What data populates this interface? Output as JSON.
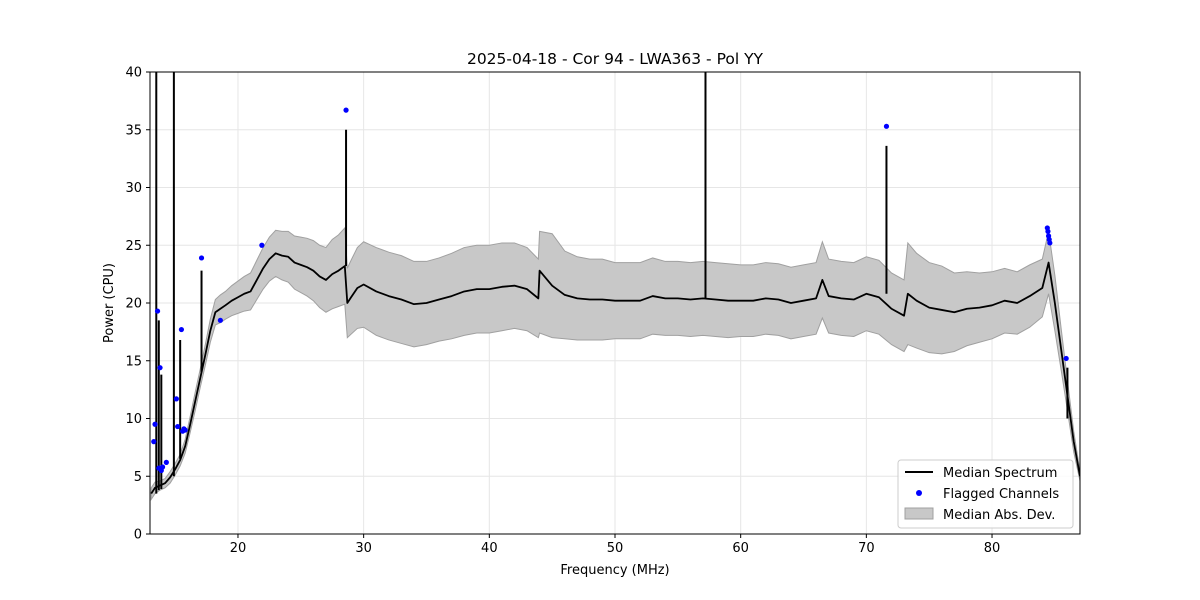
{
  "chart_data": {
    "type": "line",
    "title": "2025-04-18 - Cor 94 - LWA363 - Pol YY",
    "xlabel": "Frequency (MHz)",
    "ylabel": "Power (CPU)",
    "xlim": [
      13.0,
      87.0
    ],
    "ylim": [
      0,
      40
    ],
    "xticks": [
      20,
      30,
      40,
      50,
      60,
      70,
      80
    ],
    "yticks": [
      0,
      5,
      10,
      15,
      20,
      25,
      30,
      35,
      40
    ],
    "grid": true,
    "legend_position": "lower-right",
    "colors": {
      "median": "#000000",
      "flagged": "#0000ff",
      "mad_fill": "#c8c8c8",
      "mad_edge": "#a0a0a0"
    },
    "series": [
      {
        "name": "Median Spectrum",
        "kind": "line",
        "x": [
          13.1,
          13.4,
          13.8,
          14.2,
          14.6,
          15.0,
          15.4,
          15.8,
          16.2,
          16.6,
          17.0,
          17.4,
          17.8,
          18.2,
          18.6,
          19.0,
          19.5,
          20.0,
          20.5,
          21.0,
          21.5,
          22.0,
          22.5,
          23.0,
          23.5,
          24.0,
          24.5,
          25.0,
          25.5,
          26.0,
          26.5,
          27.0,
          27.5,
          28.0,
          28.5,
          28.7,
          29.0,
          29.5,
          30.0,
          31.0,
          32.0,
          33.0,
          34.0,
          35.0,
          36.0,
          37.0,
          38.0,
          39.0,
          40.0,
          41.0,
          42.0,
          43.0,
          43.9,
          44.0,
          45.0,
          46.0,
          47.0,
          48.0,
          49.0,
          50.0,
          51.0,
          52.0,
          53.0,
          54.0,
          55.0,
          56.0,
          57.0,
          58.0,
          59.0,
          60.0,
          61.0,
          62.0,
          63.0,
          64.0,
          65.0,
          66.0,
          66.5,
          67.0,
          68.0,
          69.0,
          70.0,
          71.0,
          72.0,
          73.0,
          73.3,
          74.0,
          75.0,
          76.0,
          77.0,
          78.0,
          79.0,
          80.0,
          81.0,
          82.0,
          83.0,
          84.0,
          84.5,
          85.0,
          85.5,
          86.0,
          86.5,
          87.0
        ],
        "values": [
          3.5,
          4.0,
          4.2,
          4.4,
          4.9,
          5.6,
          6.4,
          7.6,
          9.5,
          11.5,
          13.5,
          15.5,
          17.6,
          19.2,
          19.5,
          19.8,
          20.2,
          20.5,
          20.8,
          21.0,
          22.0,
          23.0,
          23.8,
          24.3,
          24.1,
          24.0,
          23.5,
          23.3,
          23.1,
          22.8,
          22.3,
          22.0,
          22.5,
          22.8,
          23.2,
          20.0,
          20.5,
          21.3,
          21.6,
          21.0,
          20.6,
          20.3,
          19.9,
          20.0,
          20.3,
          20.6,
          21.0,
          21.2,
          21.2,
          21.4,
          21.5,
          21.2,
          20.4,
          22.8,
          21.5,
          20.7,
          20.4,
          20.3,
          20.3,
          20.2,
          20.2,
          20.2,
          20.6,
          20.4,
          20.4,
          20.3,
          20.4,
          20.3,
          20.2,
          20.2,
          20.2,
          20.4,
          20.3,
          20.0,
          20.2,
          20.4,
          22.0,
          20.6,
          20.4,
          20.3,
          20.8,
          20.5,
          19.5,
          18.9,
          20.8,
          20.2,
          19.6,
          19.4,
          19.2,
          19.5,
          19.6,
          19.8,
          20.2,
          20.0,
          20.6,
          21.3,
          23.5,
          20.0,
          16.0,
          12.0,
          8.0,
          5.0
        ]
      },
      {
        "name": "Median Abs. Dev.",
        "kind": "band",
        "x": [
          13.1,
          13.4,
          13.8,
          14.2,
          14.6,
          15.0,
          15.4,
          15.8,
          16.2,
          16.6,
          17.0,
          17.4,
          17.8,
          18.2,
          18.6,
          19.0,
          19.5,
          20.0,
          20.5,
          21.0,
          21.5,
          22.0,
          22.5,
          23.0,
          23.5,
          24.0,
          24.5,
          25.0,
          25.5,
          26.0,
          26.5,
          27.0,
          27.5,
          28.0,
          28.5,
          28.7,
          29.0,
          29.5,
          30.0,
          31.0,
          32.0,
          33.0,
          34.0,
          35.0,
          36.0,
          37.0,
          38.0,
          39.0,
          40.0,
          41.0,
          42.0,
          43.0,
          43.9,
          44.0,
          45.0,
          46.0,
          47.0,
          48.0,
          49.0,
          50.0,
          51.0,
          52.0,
          53.0,
          54.0,
          55.0,
          56.0,
          57.0,
          58.0,
          59.0,
          60.0,
          61.0,
          62.0,
          63.0,
          64.0,
          65.0,
          66.0,
          66.5,
          67.0,
          68.0,
          69.0,
          70.0,
          71.0,
          72.0,
          73.0,
          73.3,
          74.0,
          75.0,
          76.0,
          77.0,
          78.0,
          79.0,
          80.0,
          81.0,
          82.0,
          83.0,
          84.0,
          84.5,
          85.0,
          85.5,
          86.0,
          86.5,
          87.0
        ],
        "lower": [
          3.0,
          3.5,
          3.8,
          4.0,
          4.4,
          5.1,
          5.9,
          7.0,
          8.8,
          10.7,
          12.7,
          14.6,
          16.6,
          18.1,
          18.3,
          18.6,
          18.9,
          19.1,
          19.3,
          19.4,
          20.3,
          21.2,
          21.9,
          22.3,
          22.0,
          21.8,
          21.2,
          20.9,
          20.6,
          20.2,
          19.6,
          19.2,
          19.5,
          19.7,
          19.9,
          17.0,
          17.3,
          17.8,
          17.9,
          17.2,
          16.8,
          16.5,
          16.2,
          16.4,
          16.7,
          16.9,
          17.2,
          17.4,
          17.4,
          17.6,
          17.8,
          17.6,
          17.0,
          17.4,
          17.0,
          16.9,
          16.8,
          16.8,
          16.8,
          16.9,
          16.9,
          16.9,
          17.3,
          17.2,
          17.2,
          17.1,
          17.2,
          17.1,
          17.0,
          17.1,
          17.1,
          17.3,
          17.2,
          16.9,
          17.1,
          17.3,
          18.7,
          17.4,
          17.2,
          17.1,
          17.6,
          17.3,
          16.4,
          15.8,
          16.4,
          16.1,
          15.7,
          15.6,
          15.8,
          16.3,
          16.6,
          16.9,
          17.4,
          17.3,
          17.9,
          18.8,
          20.8,
          17.6,
          14.2,
          10.7,
          7.1,
          4.6
        ],
        "upper": [
          4.0,
          4.5,
          4.6,
          4.8,
          5.4,
          6.1,
          6.9,
          8.2,
          10.2,
          12.3,
          14.3,
          16.4,
          18.6,
          20.3,
          20.7,
          21.0,
          21.5,
          21.9,
          22.3,
          22.6,
          23.7,
          24.8,
          25.7,
          26.3,
          26.2,
          26.2,
          25.8,
          25.7,
          25.6,
          25.4,
          25.0,
          24.8,
          25.5,
          25.9,
          26.5,
          23.0,
          23.7,
          24.8,
          25.3,
          24.8,
          24.4,
          24.1,
          23.6,
          23.6,
          23.9,
          24.3,
          24.8,
          25.0,
          25.0,
          25.2,
          25.2,
          24.8,
          23.8,
          26.2,
          26.0,
          24.5,
          24.0,
          23.8,
          23.8,
          23.5,
          23.5,
          23.5,
          23.9,
          23.6,
          23.6,
          23.5,
          23.6,
          23.5,
          23.4,
          23.3,
          23.3,
          23.5,
          23.4,
          23.1,
          23.3,
          23.5,
          25.3,
          23.8,
          23.6,
          23.5,
          24.0,
          23.7,
          22.6,
          22.0,
          25.2,
          24.3,
          23.5,
          23.2,
          22.6,
          22.7,
          22.6,
          22.7,
          23.0,
          22.7,
          23.3,
          23.8,
          26.2,
          22.4,
          17.8,
          13.3,
          8.9,
          5.4
        ]
      },
      {
        "name": "Flagged Channels",
        "kind": "scatter",
        "x": [
          13.3,
          13.4,
          13.6,
          13.7,
          13.8,
          13.9,
          14.0,
          14.3,
          15.1,
          15.2,
          15.5,
          15.6,
          15.7,
          15.8,
          17.1,
          18.6,
          21.9,
          28.6,
          71.6,
          84.4,
          84.45,
          84.5,
          84.55,
          84.6,
          85.9
        ],
        "values": [
          8.0,
          9.5,
          19.3,
          5.7,
          14.4,
          5.5,
          5.8,
          6.2,
          11.7,
          9.3,
          17.7,
          8.9,
          9.1,
          9.0,
          23.9,
          18.5,
          25.0,
          36.7,
          35.3,
          26.5,
          26.2,
          25.8,
          25.5,
          25.2,
          15.2
        ]
      }
    ],
    "spikes": [
      {
        "x": 13.5,
        "values": [
          3.5,
          40.0
        ]
      },
      {
        "x": 13.7,
        "values": [
          3.8,
          18.5
        ]
      },
      {
        "x": 13.9,
        "values": [
          3.9,
          13.8
        ]
      },
      {
        "x": 14.9,
        "values": [
          5.0,
          40.0
        ]
      },
      {
        "x": 15.4,
        "values": [
          6.5,
          16.8
        ]
      },
      {
        "x": 17.1,
        "values": [
          14.0,
          22.8
        ]
      },
      {
        "x": 28.6,
        "values": [
          23.2,
          35.0
        ]
      },
      {
        "x": 57.2,
        "values": [
          20.4,
          40.0
        ]
      },
      {
        "x": 71.6,
        "values": [
          20.8,
          33.6
        ]
      },
      {
        "x": 86.0,
        "values": [
          10.0,
          14.4
        ]
      }
    ]
  }
}
